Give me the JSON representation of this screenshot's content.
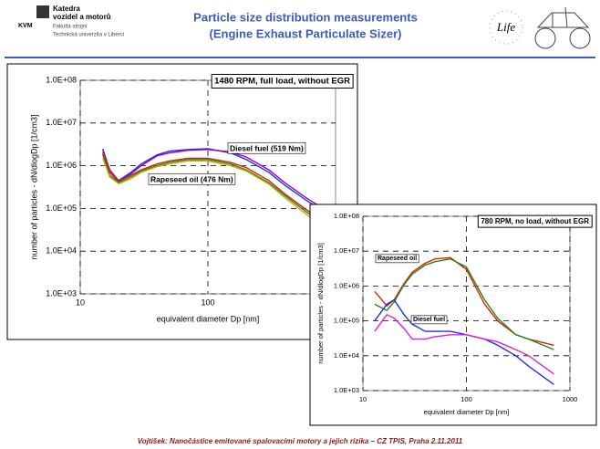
{
  "header": {
    "logo": "KVM",
    "department": "Katedra",
    "department2": "vozidel a motorů",
    "faculty": "Fakulta strojní",
    "university": "Technická univerzita v Liberci",
    "title": [
      "Particle size distribution measurements",
      "(Engine Exhaust Particulate Sizer)"
    ],
    "logo_right": "Life"
  },
  "chart_data": [
    {
      "type": "line",
      "title": "1480 RPM, full load, without EGR",
      "xlabel": "equivalent diameter Dp [nm]",
      "ylabel": "number of particles - dN/dlogDp [1/cm3]",
      "xscale": "log",
      "yscale": "log",
      "grid": true,
      "xlim": [
        10,
        1000
      ],
      "xticks": [
        10,
        100
      ],
      "ylim": [
        1000,
        100000000
      ],
      "yticks": [
        {
          "value": 1000,
          "label": "1.0E+03"
        },
        {
          "value": 10000,
          "label": "1.0E+04"
        },
        {
          "value": 100000,
          "label": "1.0E+05"
        },
        {
          "value": 1000000,
          "label": "1.0E+06"
        },
        {
          "value": 10000000,
          "label": "1.0E+07"
        },
        {
          "value": 100000000,
          "label": "1.0E+08"
        }
      ],
      "x": [
        15,
        17,
        20,
        25,
        30,
        40,
        50,
        70,
        100,
        150,
        200,
        300,
        400,
        600,
        900
      ],
      "series": [
        {
          "color": "#2233dd",
          "values": [
            2500000,
            800000,
            450000,
            700000,
            1100000,
            1800000,
            2200000,
            2400000,
            2500000,
            2000000,
            1400000,
            700000,
            350000,
            150000,
            70000
          ]
        },
        {
          "color": "#9900cc",
          "values": [
            2000000,
            700000,
            420000,
            650000,
            1000000,
            1700000,
            2000000,
            2300000,
            2400000,
            2100000,
            1600000,
            800000,
            400000,
            170000,
            80000
          ]
        },
        {
          "color": "#dd2200",
          "values": [
            2200000,
            800000,
            430000,
            600000,
            800000,
            1100000,
            1300000,
            1500000,
            1500000,
            1200000,
            900000,
            450000,
            220000,
            90000,
            40000
          ]
        },
        {
          "color": "#228822",
          "values": [
            1800000,
            600000,
            400000,
            550000,
            750000,
            1000000,
            1200000,
            1400000,
            1400000,
            1100000,
            800000,
            400000,
            200000,
            80000,
            35000
          ]
        },
        {
          "color": "#ccaa00",
          "values": [
            1500000,
            550000,
            380000,
            500000,
            700000,
            950000,
            1100000,
            1300000,
            1300000,
            1000000,
            750000,
            370000,
            180000,
            70000,
            30000
          ]
        }
      ],
      "annotations": [
        "Diesel fuel (519 Nm)",
        "Rapeseed oil (476 Nm)"
      ]
    },
    {
      "type": "line",
      "title": "780 RPM, no load, without EGR",
      "xlabel": "equivalent diameter Dp [nm]",
      "ylabel": "number of particles - dN/dlogDp [1/cm3]",
      "xscale": "log",
      "yscale": "log",
      "grid": true,
      "xlim": [
        10,
        1000
      ],
      "xticks": [
        10,
        100,
        1000
      ],
      "ylim": [
        1000,
        100000000
      ],
      "yticks": [
        {
          "value": 1000,
          "label": "1.0E+03"
        },
        {
          "value": 10000,
          "label": "1.0E+04"
        },
        {
          "value": 100000,
          "label": "1.0E+05"
        },
        {
          "value": 1000000,
          "label": "1.0E+06"
        },
        {
          "value": 10000000,
          "label": "1.0E+07"
        },
        {
          "value": 100000000,
          "label": "1.0E+08"
        }
      ],
      "x": [
        13,
        17,
        20,
        25,
        30,
        40,
        50,
        70,
        100,
        150,
        200,
        300,
        400,
        700
      ],
      "series": [
        {
          "color": "#dd2200",
          "values": [
            700000,
            270000,
            400000,
            1200000,
            2500000,
            4500000,
            6000000,
            6500000,
            3000000,
            300000,
            100000,
            40000,
            30000,
            20000
          ]
        },
        {
          "color": "#228822",
          "values": [
            300000,
            200000,
            350000,
            1100000,
            2200000,
            4000000,
            5000000,
            6000000,
            3500000,
            400000,
            120000,
            40000,
            30000,
            15000
          ]
        },
        {
          "color": "#2233dd",
          "values": [
            100000,
            300000,
            400000,
            150000,
            80000,
            50000,
            50000,
            50000,
            40000,
            30000,
            20000,
            10000,
            5000,
            1500
          ]
        },
        {
          "color": "#dd22dd",
          "values": [
            50000,
            150000,
            120000,
            60000,
            30000,
            30000,
            35000,
            40000,
            40000,
            30000,
            25000,
            15000,
            10000,
            3000
          ]
        }
      ],
      "annotations": [
        "Rapeseed oil",
        "Diesel fuel"
      ]
    }
  ],
  "footer": "Vojtíšek: Nanočástice emitované spalovacími motory a jejich rizika – CZ TPIS, Praha 2.11.2011"
}
